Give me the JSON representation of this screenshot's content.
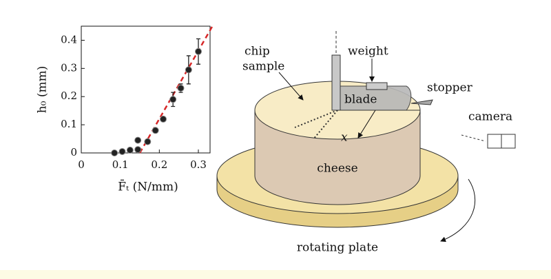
{
  "chart_data": {
    "type": "scatter",
    "xlabel": "F̄ₜ (N/mm)",
    "ylabel": "h₀ (mm)",
    "xlim": [
      0,
      0.33
    ],
    "ylim": [
      0,
      0.45
    ],
    "xticks": [
      0,
      0.1,
      0.2,
      0.3
    ],
    "yticks": [
      0,
      0.1,
      0.2,
      0.3,
      0.4
    ],
    "series": [
      {
        "color": "#222222",
        "x": [
          0.085,
          0.105,
          0.125,
          0.145,
          0.145,
          0.17,
          0.19,
          0.21,
          0.235,
          0.255,
          0.275,
          0.3
        ],
        "values": [
          0,
          0.005,
          0.01,
          0.012,
          0.045,
          0.04,
          0.08,
          0.12,
          0.19,
          0.23,
          0.295,
          0.36
        ],
        "errors": [
          null,
          null,
          null,
          null,
          null,
          null,
          null,
          null,
          0.025,
          0.015,
          0.05,
          0.045
        ]
      }
    ],
    "fit": {
      "color": "#d62728",
      "x": [
        0.15,
        0.336
      ],
      "values": [
        0,
        0.45
      ]
    }
  },
  "diagram": {
    "chip_sample": [
      "chip",
      "sample"
    ],
    "weight": "weight",
    "blade": "blade",
    "stopper": "stopper",
    "camera": "camera",
    "x": "x",
    "cheese": "cheese",
    "rotating_plate": "rotating plate"
  }
}
